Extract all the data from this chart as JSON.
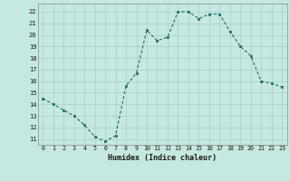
{
  "x": [
    0,
    1,
    2,
    3,
    4,
    5,
    6,
    7,
    8,
    9,
    10,
    11,
    12,
    13,
    14,
    15,
    16,
    17,
    18,
    19,
    20,
    21,
    22,
    23
  ],
  "y": [
    14.5,
    14.0,
    13.5,
    13.0,
    12.2,
    11.2,
    10.8,
    11.3,
    15.6,
    16.7,
    20.4,
    19.5,
    19.8,
    22.0,
    22.0,
    21.4,
    21.8,
    21.8,
    20.3,
    19.0,
    18.2,
    16.0,
    15.8,
    15.5
  ],
  "xlabel": "Humidex (Indice chaleur)",
  "ylim": [
    10.5,
    22.7
  ],
  "xlim": [
    -0.5,
    23.5
  ],
  "yticks": [
    11,
    12,
    13,
    14,
    15,
    16,
    17,
    18,
    19,
    20,
    21,
    22
  ],
  "xticks": [
    0,
    1,
    2,
    3,
    4,
    5,
    6,
    7,
    8,
    9,
    10,
    11,
    12,
    13,
    14,
    15,
    16,
    17,
    18,
    19,
    20,
    21,
    22,
    23
  ],
  "line_color": "#1a6e62",
  "marker_color": "#1a6e62",
  "bg_color": "#c5e8e0",
  "grid_color": "#a8cfc8",
  "text_color": "#1a1a1a",
  "spine_color": "#888888"
}
